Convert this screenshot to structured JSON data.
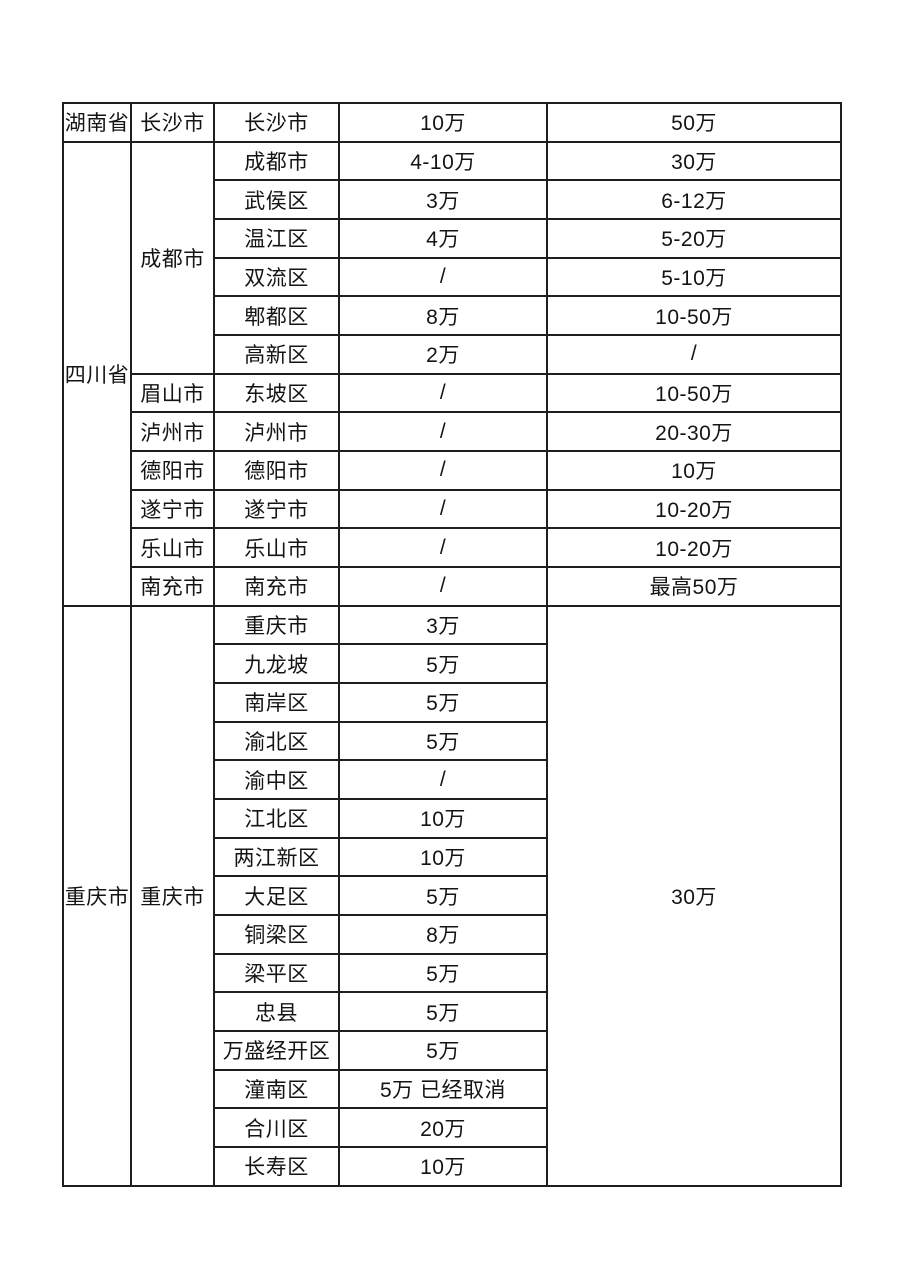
{
  "accent_colors": {
    "border": "#1e1e1e",
    "text": "#141414",
    "background": "#ffffff"
  },
  "table": {
    "sections": [
      {
        "province": "湖南省",
        "cities": [
          {
            "name": "长沙市",
            "rows": [
              {
                "district": "长沙市",
                "value1": "10万",
                "value2": "50万"
              }
            ]
          }
        ]
      },
      {
        "province": "四川省",
        "cities": [
          {
            "name": "成都市",
            "rows": [
              {
                "district": "成都市",
                "value1": "4-10万",
                "value2": "30万"
              },
              {
                "district": "武侯区",
                "value1": "3万",
                "value2": "6-12万"
              },
              {
                "district": "温江区",
                "value1": "4万",
                "value2": "5-20万"
              },
              {
                "district": "双流区",
                "value1": "/",
                "value2": "5-10万"
              },
              {
                "district": "郫都区",
                "value1": "8万",
                "value2": "10-50万"
              },
              {
                "district": "高新区",
                "value1": "2万",
                "value2": "/"
              }
            ]
          },
          {
            "name": "眉山市",
            "rows": [
              {
                "district": "东坡区",
                "value1": "/",
                "value2": "10-50万"
              }
            ]
          },
          {
            "name": "泸州市",
            "rows": [
              {
                "district": "泸州市",
                "value1": "/",
                "value2": "20-30万"
              }
            ]
          },
          {
            "name": "德阳市",
            "rows": [
              {
                "district": "德阳市",
                "value1": "/",
                "value2": "10万"
              }
            ]
          },
          {
            "name": "遂宁市",
            "rows": [
              {
                "district": "遂宁市",
                "value1": "/",
                "value2": "10-20万"
              }
            ]
          },
          {
            "name": "乐山市",
            "rows": [
              {
                "district": "乐山市",
                "value1": "/",
                "value2": "10-20万"
              }
            ]
          },
          {
            "name": "南充市",
            "rows": [
              {
                "district": "南充市",
                "value1": "/",
                "value2": "最高50万"
              }
            ]
          }
        ]
      },
      {
        "province": "重庆市",
        "cities": [
          {
            "name": "重庆市",
            "merged_value2": "30万",
            "rows": [
              {
                "district": "重庆市",
                "value1": "3万"
              },
              {
                "district": "九龙坡",
                "value1": "5万"
              },
              {
                "district": "南岸区",
                "value1": "5万"
              },
              {
                "district": "渝北区",
                "value1": "5万"
              },
              {
                "district": "渝中区",
                "value1": "/"
              },
              {
                "district": "江北区",
                "value1": "10万"
              },
              {
                "district": "两江新区",
                "value1": "10万"
              },
              {
                "district": "大足区",
                "value1": "5万"
              },
              {
                "district": "铜梁区",
                "value1": "8万"
              },
              {
                "district": "梁平区",
                "value1": "5万"
              },
              {
                "district": "忠县",
                "value1": "5万"
              },
              {
                "district": "万盛经开区",
                "value1": "5万"
              },
              {
                "district": "潼南区",
                "value1": "5万 已经取消"
              },
              {
                "district": "合川区",
                "value1": "20万"
              },
              {
                "district": "长寿区",
                "value1": "10万"
              }
            ]
          }
        ]
      }
    ]
  }
}
